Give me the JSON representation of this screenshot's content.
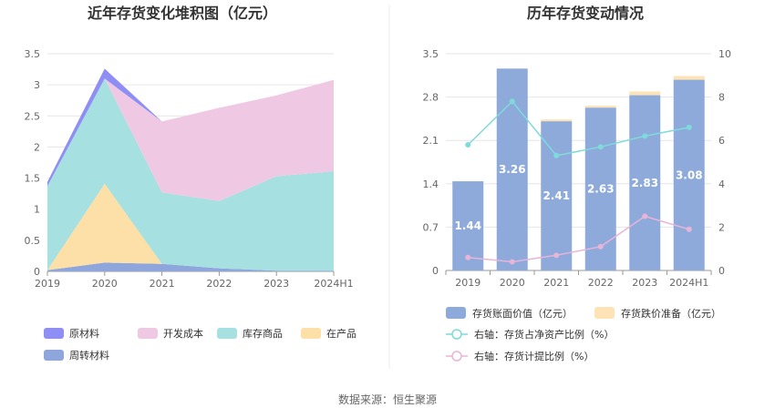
{
  "chart_data": [
    {
      "type": "area",
      "stacked": true,
      "title": "近年存货变化堆积图（亿元）",
      "categories": [
        "2019",
        "2020",
        "2021",
        "2022",
        "2023",
        "2024H1"
      ],
      "ylim": [
        0,
        3.5
      ],
      "yticks": [
        "0",
        "0.5",
        "1",
        "1.5",
        "2",
        "2.5",
        "3",
        "3.5"
      ],
      "grid": true,
      "legend_position": "bottom-left",
      "series": [
        {
          "name": "周转材料",
          "color": "#8ea6dc",
          "values": [
            0.02,
            0.14,
            0.12,
            0.05,
            0.01,
            0.01
          ]
        },
        {
          "name": "在产品",
          "color": "#fde0a8",
          "values": [
            0.0,
            1.27,
            0.0,
            0.0,
            0.0,
            0.0
          ]
        },
        {
          "name": "库存商品",
          "color": "#a6e0e0",
          "values": [
            1.35,
            1.69,
            1.15,
            1.08,
            1.52,
            1.6
          ]
        },
        {
          "name": "开发成本",
          "color": "#efc9e3",
          "values": [
            0.0,
            0.0,
            1.14,
            1.5,
            1.3,
            1.47
          ]
        },
        {
          "name": "原材料",
          "color": "#8f8ef5",
          "values": [
            0.07,
            0.16,
            0.0,
            0.0,
            0.0,
            0.0
          ]
        }
      ],
      "legend_order": [
        "原材料",
        "开发成本",
        "库存商品",
        "在产品",
        "周转材料"
      ]
    },
    {
      "type": "bar",
      "title": "历年存货变动情况",
      "categories": [
        "2019",
        "2020",
        "2021",
        "2022",
        "2023",
        "2024H1"
      ],
      "ylim": [
        0,
        3.5
      ],
      "yticks": [
        "0",
        "0.7",
        "1.4",
        "2.1",
        "2.8",
        "3.5"
      ],
      "y2lim": [
        0,
        10
      ],
      "y2ticks": [
        "0",
        "2",
        "4",
        "6",
        "8",
        "10"
      ],
      "grid": true,
      "bar_series": [
        {
          "name": "存货账面价值（亿元）",
          "color": "#8eaadb",
          "values": [
            1.44,
            3.26,
            2.41,
            2.63,
            2.83,
            3.08
          ],
          "labels": [
            "1.44",
            "3.26",
            "2.41",
            "2.63",
            "2.83",
            "3.08"
          ]
        },
        {
          "name": "存货跌价准备（亿元）",
          "color": "#fde3b6",
          "values": [
            0.0,
            0.0,
            0.03,
            0.03,
            0.06,
            0.06
          ]
        }
      ],
      "line_series": [
        {
          "name": "右轴：存货占净资产比例（%）",
          "color": "#7fdada",
          "values": [
            5.8,
            7.8,
            5.3,
            5.7,
            6.2,
            6.6
          ]
        },
        {
          "name": "右轴：存货计提比例（%）",
          "color": "#e8b4d8",
          "values": [
            0.6,
            0.4,
            0.7,
            1.1,
            2.5,
            1.9
          ]
        }
      ],
      "legend_position": "bottom"
    }
  ],
  "footer": {
    "source": "数据来源：恒生聚源"
  }
}
